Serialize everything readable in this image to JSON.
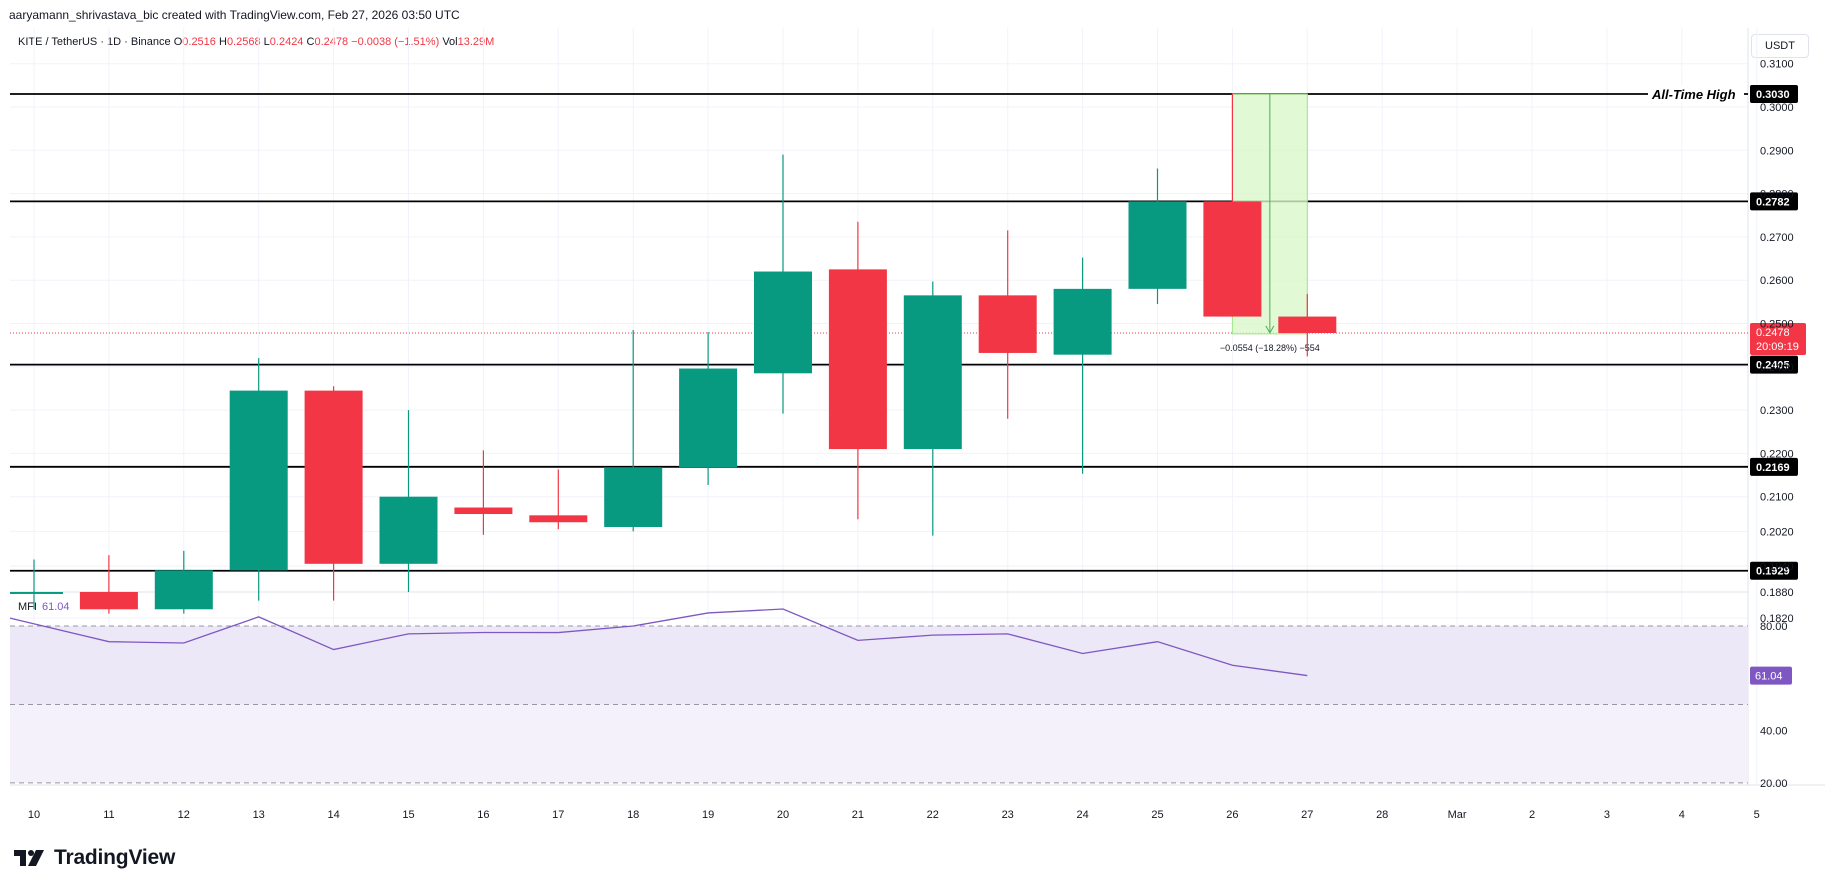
{
  "header": {
    "attribution": "aaryamann_shrivastava_bic created with TradingView.com, Feb 27, 2026 03:50 UTC"
  },
  "legend": {
    "symbol": "KITE / TetherUS · 1D · Binance",
    "open_label": "O",
    "open_value": "0.2516",
    "high_label": "H",
    "high_value": "0.2568",
    "low_label": "L",
    "low_value": "0.2424",
    "close_label": "C",
    "close_value": "0.2478",
    "change": "−0.0038 (−1.51%)",
    "vol_label": "Vol",
    "vol_value": "13.29M"
  },
  "currency": "USDT",
  "brand": {
    "name": "TradingView"
  },
  "colors": {
    "up": "#089981",
    "down": "#f23645",
    "mfi": "#7e57c2",
    "mfi_band": "#ede8f7",
    "measure_fill": "#d9f7c9",
    "measure_line": "#4caf50",
    "level": "#000000"
  },
  "chart_data": {
    "type": "candlestick",
    "x_tick_labels": [
      "10",
      "11",
      "12",
      "13",
      "14",
      "15",
      "16",
      "17",
      "18",
      "19",
      "20",
      "21",
      "22",
      "23",
      "24",
      "25",
      "26",
      "27",
      "28",
      "Mar",
      "2",
      "3",
      "4",
      "5"
    ],
    "y_tick_labels": [
      "0.3100",
      "0.3000",
      "0.2900",
      "0.2800",
      "0.2700",
      "0.2600",
      "0.2500",
      "0.2400",
      "0.2300",
      "0.2200",
      "0.2100",
      "0.2020",
      "0.1940",
      "0.1880",
      "0.1820"
    ],
    "candles": [
      {
        "date": "10",
        "open": 0.188,
        "high": 0.1955,
        "low": 0.184,
        "close": 0.188
      },
      {
        "date": "11",
        "open": 0.188,
        "high": 0.1965,
        "low": 0.183,
        "close": 0.184
      },
      {
        "date": "12",
        "open": 0.184,
        "high": 0.1975,
        "low": 0.183,
        "close": 0.193
      },
      {
        "date": "13",
        "open": 0.193,
        "high": 0.242,
        "low": 0.186,
        "close": 0.2345
      },
      {
        "date": "14",
        "open": 0.2345,
        "high": 0.2355,
        "low": 0.186,
        "close": 0.1945
      },
      {
        "date": "15",
        "open": 0.1945,
        "high": 0.23,
        "low": 0.188,
        "close": 0.21
      },
      {
        "date": "16",
        "open": 0.2075,
        "high": 0.2207,
        "low": 0.2012,
        "close": 0.206
      },
      {
        "date": "17",
        "open": 0.2057,
        "high": 0.2163,
        "low": 0.2025,
        "close": 0.2041
      },
      {
        "date": "18",
        "open": 0.203,
        "high": 0.2485,
        "low": 0.202,
        "close": 0.2168
      },
      {
        "date": "19",
        "open": 0.2168,
        "high": 0.248,
        "low": 0.2127,
        "close": 0.2396
      },
      {
        "date": "20",
        "open": 0.2385,
        "high": 0.289,
        "low": 0.2292,
        "close": 0.262
      },
      {
        "date": "21",
        "open": 0.2625,
        "high": 0.2735,
        "low": 0.2048,
        "close": 0.221
      },
      {
        "date": "22",
        "open": 0.221,
        "high": 0.2597,
        "low": 0.201,
        "close": 0.2565
      },
      {
        "date": "23",
        "open": 0.2565,
        "high": 0.2715,
        "low": 0.228,
        "close": 0.2432
      },
      {
        "date": "24",
        "open": 0.2428,
        "high": 0.2652,
        "low": 0.2153,
        "close": 0.258
      },
      {
        "date": "25",
        "open": 0.258,
        "high": 0.2858,
        "low": 0.2545,
        "close": 0.2782
      },
      {
        "date": "26",
        "open": 0.2782,
        "high": 0.303,
        "low": 0.2516,
        "close": 0.2516
      },
      {
        "date": "27",
        "open": 0.2516,
        "high": 0.2568,
        "low": 0.2424,
        "close": 0.2478
      }
    ],
    "levels": [
      {
        "value": 0.303,
        "label": "0.3030",
        "note": "All-Time High"
      },
      {
        "value": 0.2782,
        "label": "0.2782",
        "note": ""
      },
      {
        "value": 0.2405,
        "label": "0.2405",
        "note": ""
      },
      {
        "value": 0.2169,
        "label": "0.2169",
        "note": ""
      },
      {
        "value": 0.1929,
        "label": "0.1929",
        "note": ""
      }
    ],
    "current_price": {
      "value": 0.2478,
      "label": "0.2478",
      "countdown": "20:09:19"
    },
    "measure": {
      "from": 0.303,
      "to": 0.2476,
      "label": "−0.0554 (−18.28%) −554"
    },
    "mfi": {
      "name": "MFI",
      "current": "61.04",
      "values": [
        83,
        74,
        73.5,
        83.5,
        71,
        77,
        77.5,
        77.5,
        80,
        85,
        86.5,
        74.5,
        76.5,
        77,
        69.5,
        74,
        65,
        61.04
      ],
      "y_tick_labels": [
        "80.00",
        "40.00",
        "20.00"
      ],
      "band": [
        50,
        80
      ]
    }
  }
}
